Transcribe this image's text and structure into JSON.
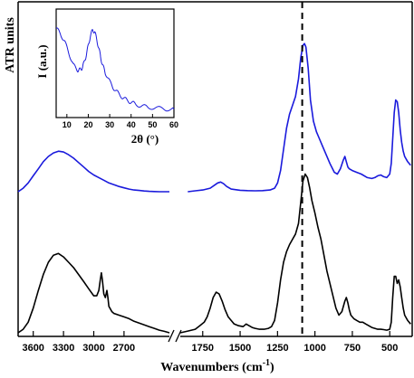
{
  "chart_data": [
    {
      "type": "line",
      "xlabel": "Wavenumbers (cm-1)",
      "xlabel_main": "Wavenumbers (cm",
      "xlabel_sup": "-1",
      "xlabel_tail": ")",
      "ylabel": "ATR units",
      "x_axis_break": true,
      "x_segments": [
        {
          "xlim": [
            3750,
            2250
          ],
          "ticks": [
            3600,
            3300,
            3000,
            2700
          ]
        },
        {
          "xlim": [
            1900,
            350
          ],
          "ticks": [
            1750,
            1500,
            1250,
            1000,
            750,
            500
          ]
        }
      ],
      "tick_labels": [
        "3600",
        "3300",
        "3000",
        "2700",
        "1750",
        "1500",
        "1250",
        "1000",
        "750",
        "500"
      ],
      "ylim": [
        0,
        1
      ],
      "grid": false,
      "legend": "none",
      "reference_line": {
        "x": 1085,
        "style": "dashed",
        "color": "#000000"
      },
      "series": [
        {
          "color": "#1a1adc",
          "offset": 0.42,
          "segments": [
            {
              "x": [
                3750,
                3700,
                3650,
                3600,
                3550,
                3500,
                3450,
                3400,
                3350,
                3300,
                3250,
                3200,
                3150,
                3100,
                3050,
                3000,
                2950,
                2900,
                2850,
                2800,
                2750,
                2700,
                2650,
                2600,
                2550,
                2500,
                2450,
                2400,
                2350,
                2300,
                2250
              ],
              "y": [
                0.0,
                0.02,
                0.05,
                0.09,
                0.13,
                0.17,
                0.2,
                0.22,
                0.23,
                0.225,
                0.21,
                0.19,
                0.165,
                0.14,
                0.115,
                0.095,
                0.08,
                0.065,
                0.05,
                0.04,
                0.03,
                0.022,
                0.015,
                0.01,
                0.007,
                0.004,
                0.002,
                0.001,
                0.0,
                0.0,
                0.0
              ]
            },
            {
              "x": [
                1850,
                1800,
                1750,
                1700,
                1675,
                1650,
                1630,
                1610,
                1590,
                1560,
                1500,
                1450,
                1400,
                1350,
                1300,
                1270,
                1250,
                1230,
                1210,
                1190,
                1170,
                1150,
                1130,
                1110,
                1095,
                1080,
                1070,
                1060,
                1045,
                1030,
                1010,
                990,
                970,
                950,
                930,
                900,
                870,
                850,
                830,
                810,
                800,
                790,
                780,
                770,
                750,
                720,
                690,
                650,
                620,
                600,
                580,
                560,
                540,
                520,
                500,
                490,
                480,
                470,
                460,
                450,
                440,
                430,
                420,
                410,
                400,
                380,
                360
              ],
              "y": [
                0.0,
                0.005,
                0.01,
                0.02,
                0.035,
                0.05,
                0.055,
                0.045,
                0.03,
                0.015,
                0.008,
                0.006,
                0.005,
                0.006,
                0.01,
                0.02,
                0.05,
                0.12,
                0.24,
                0.36,
                0.44,
                0.49,
                0.54,
                0.64,
                0.76,
                0.83,
                0.84,
                0.82,
                0.7,
                0.52,
                0.4,
                0.34,
                0.3,
                0.26,
                0.22,
                0.16,
                0.11,
                0.1,
                0.13,
                0.18,
                0.2,
                0.17,
                0.14,
                0.13,
                0.12,
                0.11,
                0.1,
                0.08,
                0.075,
                0.08,
                0.09,
                0.095,
                0.085,
                0.08,
                0.1,
                0.16,
                0.3,
                0.45,
                0.52,
                0.51,
                0.45,
                0.35,
                0.28,
                0.23,
                0.2,
                0.17,
                0.15
              ]
            }
          ]
        },
        {
          "color": "#000000",
          "offset": 0.0,
          "segments": [
            {
              "x": [
                3750,
                3700,
                3650,
                3600,
                3550,
                3500,
                3450,
                3400,
                3350,
                3300,
                3250,
                3200,
                3150,
                3100,
                3050,
                3000,
                2970,
                2950,
                2935,
                2925,
                2915,
                2900,
                2885,
                2870,
                2860,
                2850,
                2840,
                2820,
                2800,
                2750,
                2700,
                2650,
                2600,
                2550,
                2500,
                2450,
                2400,
                2350,
                2300,
                2250
              ],
              "y": [
                0.0,
                0.02,
                0.06,
                0.14,
                0.24,
                0.33,
                0.4,
                0.44,
                0.45,
                0.43,
                0.4,
                0.37,
                0.33,
                0.29,
                0.25,
                0.21,
                0.21,
                0.24,
                0.3,
                0.34,
                0.3,
                0.22,
                0.2,
                0.24,
                0.2,
                0.15,
                0.14,
                0.12,
                0.11,
                0.1,
                0.09,
                0.08,
                0.065,
                0.055,
                0.045,
                0.035,
                0.025,
                0.015,
                0.008,
                0.0
              ]
            },
            {
              "x": [
                1900,
                1850,
                1800,
                1770,
                1740,
                1720,
                1700,
                1680,
                1660,
                1640,
                1620,
                1600,
                1580,
                1560,
                1540,
                1510,
                1480,
                1460,
                1440,
                1420,
                1400,
                1370,
                1340,
                1310,
                1290,
                1270,
                1250,
                1230,
                1210,
                1190,
                1170,
                1150,
                1130,
                1110,
                1095,
                1080,
                1065,
                1050,
                1035,
                1020,
                1000,
                980,
                960,
                940,
                920,
                900,
                880,
                860,
                840,
                820,
                800,
                790,
                780,
                770,
                760,
                740,
                720,
                700,
                680,
                660,
                640,
                620,
                600,
                580,
                560,
                540,
                520,
                500,
                490,
                480,
                470,
                460,
                450,
                440,
                430,
                420,
                410,
                400,
                380,
                360
              ],
              "y": [
                0.0,
                0.01,
                0.02,
                0.04,
                0.06,
                0.09,
                0.14,
                0.2,
                0.23,
                0.22,
                0.18,
                0.13,
                0.09,
                0.07,
                0.05,
                0.04,
                0.035,
                0.05,
                0.04,
                0.03,
                0.025,
                0.02,
                0.02,
                0.025,
                0.035,
                0.07,
                0.17,
                0.3,
                0.4,
                0.46,
                0.5,
                0.53,
                0.56,
                0.62,
                0.74,
                0.86,
                0.9,
                0.88,
                0.82,
                0.75,
                0.68,
                0.6,
                0.53,
                0.44,
                0.35,
                0.28,
                0.21,
                0.14,
                0.1,
                0.12,
                0.18,
                0.2,
                0.17,
                0.13,
                0.1,
                0.08,
                0.07,
                0.06,
                0.06,
                0.05,
                0.04,
                0.03,
                0.025,
                0.02,
                0.02,
                0.018,
                0.015,
                0.02,
                0.06,
                0.2,
                0.32,
                0.32,
                0.28,
                0.3,
                0.26,
                0.2,
                0.14,
                0.1,
                0.07,
                0.05
              ]
            }
          ]
        }
      ]
    },
    {
      "type": "line",
      "inset": true,
      "xlabel": "2θ (°)",
      "ylabel": "I (a.u.)",
      "xlim": [
        5,
        60
      ],
      "xticks": [
        10,
        20,
        30,
        40,
        50,
        60
      ],
      "grid": false,
      "legend": "none",
      "series": [
        {
          "color": "#1a1adc",
          "x": [
            5,
            7,
            9,
            11,
            13,
            15,
            16,
            17,
            18,
            19,
            20,
            21,
            22,
            23,
            24,
            25,
            26,
            27,
            28,
            30,
            32,
            34,
            36,
            38,
            40,
            42,
            45,
            48,
            52,
            56,
            60
          ],
          "y": [
            0.88,
            0.82,
            0.74,
            0.62,
            0.5,
            0.45,
            0.45,
            0.47,
            0.52,
            0.6,
            0.7,
            0.8,
            0.86,
            0.84,
            0.76,
            0.66,
            0.56,
            0.48,
            0.42,
            0.33,
            0.26,
            0.21,
            0.17,
            0.14,
            0.12,
            0.1,
            0.08,
            0.07,
            0.06,
            0.05,
            0.05
          ]
        }
      ]
    }
  ]
}
